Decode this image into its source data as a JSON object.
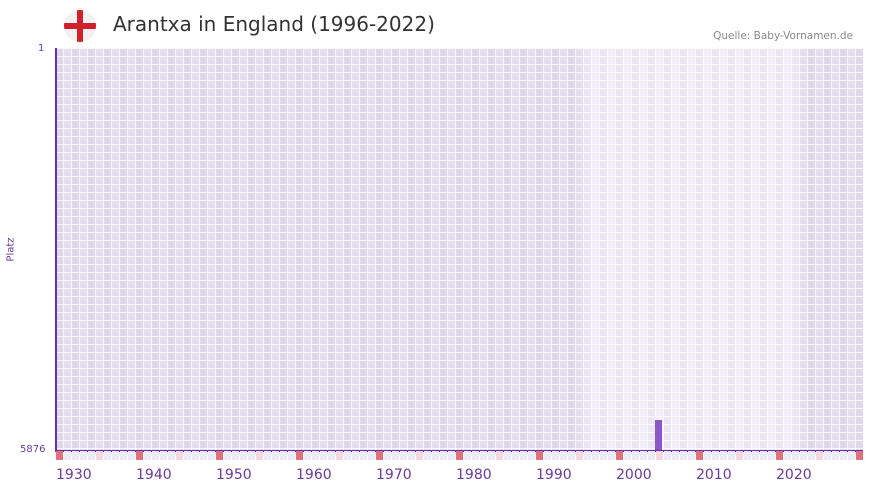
{
  "header": {
    "title": "Arantxa in England (1996-2022)",
    "flag_icon": "england-flag-icon",
    "source": "Quelle: Baby-Vornamen.de"
  },
  "colors": {
    "axis": "#6a2fa0",
    "bar": "#8e55c8",
    "tick_major": "#e0707a",
    "tick_minor": "#f5d8e0",
    "region_dark": "#e3dfee",
    "region_light": "#f1eefa",
    "label": "#6a3a9a"
  },
  "chart_data": {
    "type": "bar",
    "title": "Arantxa in England (1996-2022)",
    "xlabel": "",
    "ylabel": "Platz",
    "y_inverted": true,
    "ylim": [
      5876,
      1
    ],
    "ytick_labels": [
      "1",
      "5876"
    ],
    "x_range": [
      1928,
      2028
    ],
    "xtick_labels": [
      "1930",
      "1940",
      "1950",
      "1960",
      "1970",
      "1980",
      "1990",
      "2000",
      "2010",
      "2020"
    ],
    "data_range_highlight": [
      1994,
      2020
    ],
    "grid": true,
    "legend": null,
    "categories": [
      2003
    ],
    "values": [
      5440
    ],
    "series": [
      {
        "name": "Arantxa (England)",
        "points": [
          {
            "year": 2003,
            "rank": 5440
          }
        ]
      }
    ]
  },
  "axis": {
    "y_top": "1",
    "y_bottom": "5876",
    "y_title": "Platz",
    "x_labels": [
      "1930",
      "1940",
      "1950",
      "1960",
      "1970",
      "1980",
      "1990",
      "2000",
      "2010",
      "2020"
    ]
  }
}
